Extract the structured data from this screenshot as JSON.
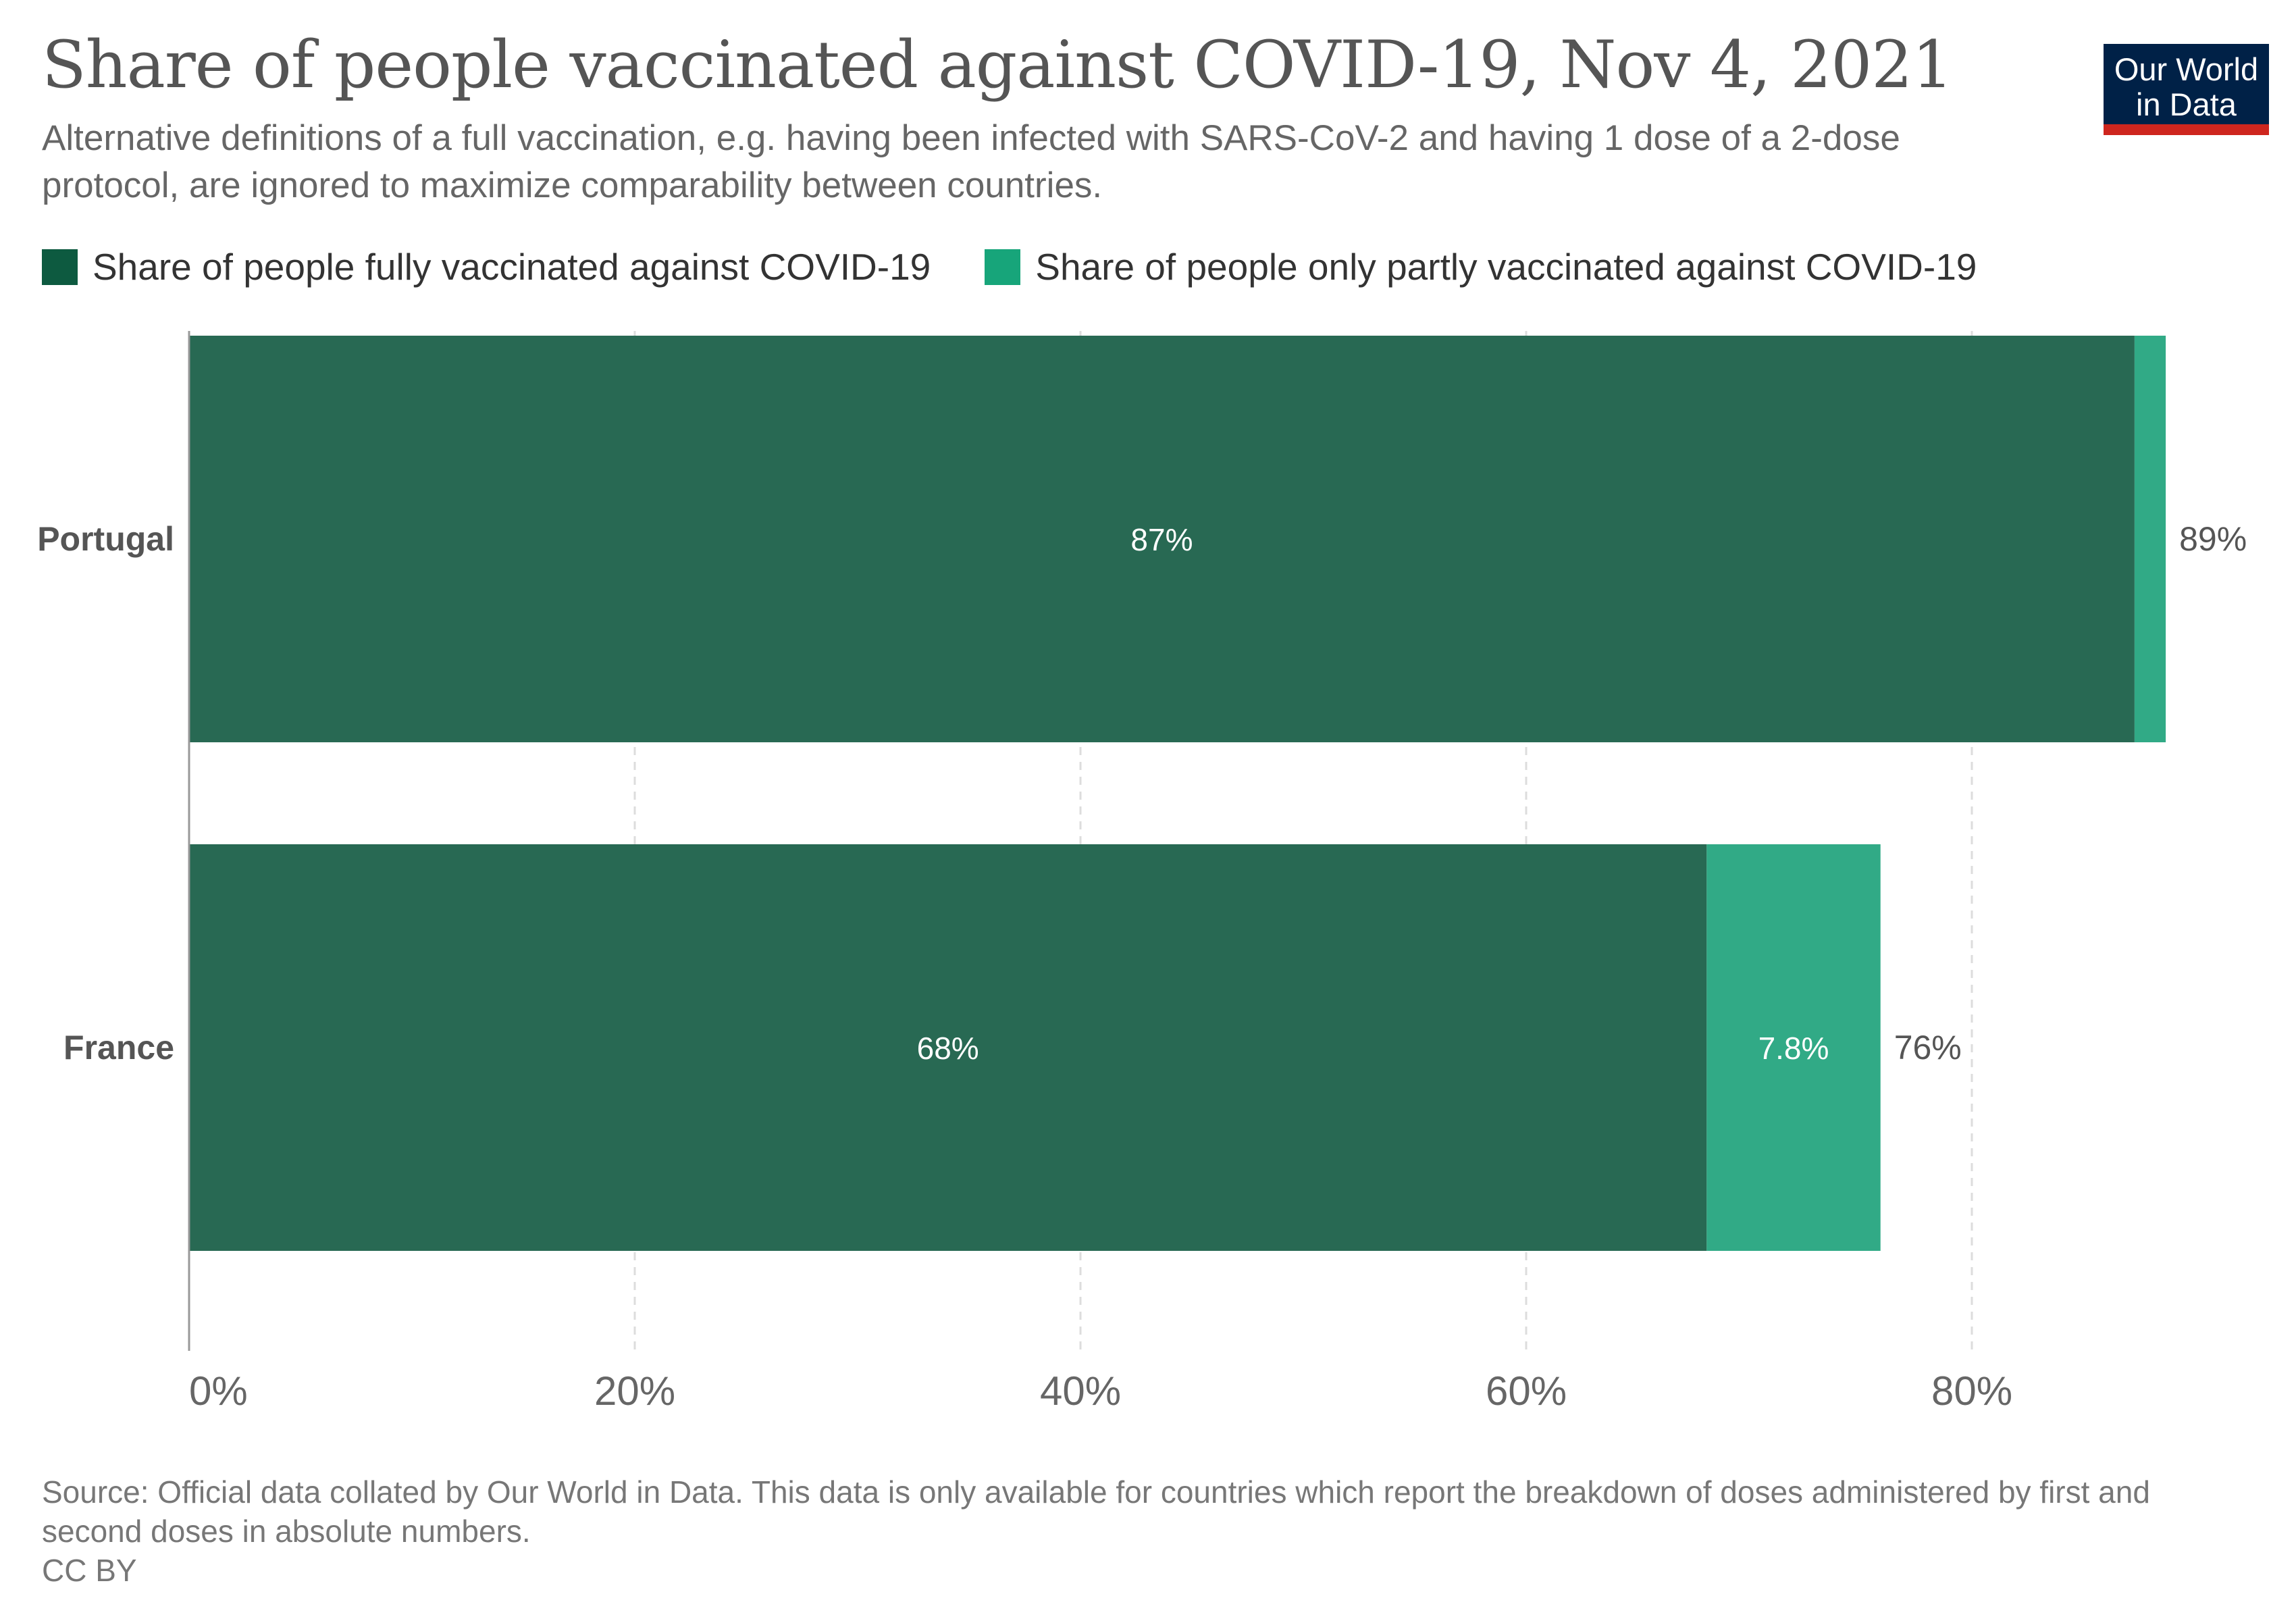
{
  "header": {
    "title": "Share of people vaccinated against COVID-19, Nov 4, 2021",
    "subtitle": "Alternative definitions of a full vaccination, e.g. having been infected with SARS-CoV-2 and having 1 dose of a 2-dose protocol, are ignored to maximize comparability between countries."
  },
  "logo": {
    "line1": "Our World",
    "line2": "in Data"
  },
  "legend": {
    "full_label": "Share of people fully vaccinated against COVID-19",
    "partial_label": "Share of people only partly vaccinated against COVID-19"
  },
  "colors": {
    "full": "#286953",
    "partial": "#31aa86",
    "full_legend": "#0d5a40",
    "partial_legend": "#17a57a",
    "logo_bg": "#002147",
    "logo_bar": "#ce261e"
  },
  "chart_data": {
    "type": "bar",
    "orientation": "horizontal",
    "stacked": true,
    "title": "Share of people vaccinated against COVID-19, Nov 4, 2021",
    "categories": [
      "Portugal",
      "France"
    ],
    "series": [
      {
        "name": "Share of people fully vaccinated against COVID-19",
        "values": [
          87.3,
          68.1
        ],
        "labels": [
          "87%",
          "68%"
        ]
      },
      {
        "name": "Share of people only partly vaccinated against COVID-19",
        "values": [
          1.4,
          7.8
        ],
        "labels": [
          "",
          "7.8%"
        ]
      }
    ],
    "totals": [
      88.7,
      75.9
    ],
    "total_labels": [
      "89%",
      "76%"
    ],
    "xlim": [
      0,
      88
    ],
    "xticks": [
      0,
      20,
      40,
      60,
      80
    ],
    "xtick_labels": [
      "0%",
      "20%",
      "40%",
      "60%",
      "80%"
    ],
    "grid": true,
    "legend_position": "top-left"
  },
  "footer": {
    "source": "Source: Official data collated by Our World in Data. This data is only available for countries which report the breakdown of doses administered by first and second doses in absolute numbers.",
    "license": "CC BY"
  }
}
